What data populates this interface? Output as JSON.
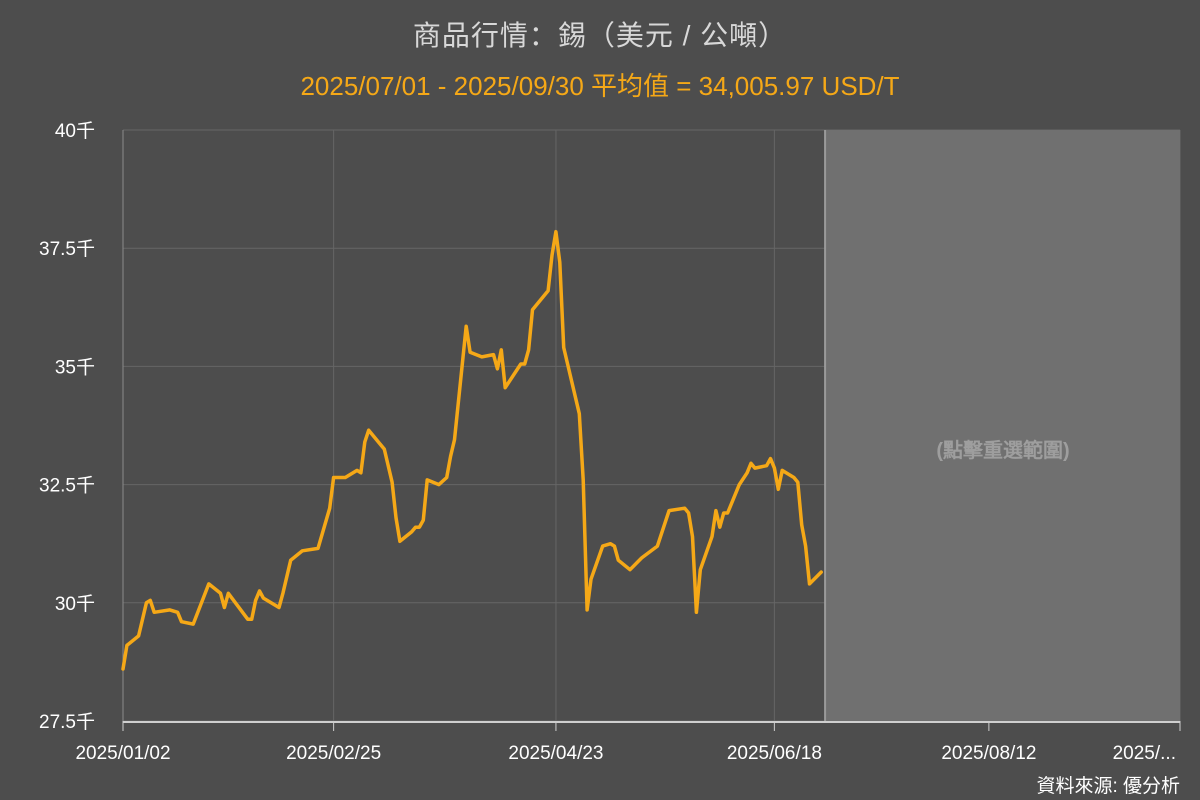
{
  "title": "商品行情：錫（美元 / 公噸）",
  "subtitle": "2025/07/01 - 2025/09/30 平均值 = 34,005.97 USD/T",
  "selection_hint": "(點擊重選範圍)",
  "source": "資料來源: 優分析",
  "colors": {
    "background": "#4d4d4d",
    "selection": "#707070",
    "line": "#f5a817",
    "grid": "#6a6a6a",
    "axis_text": "#ffffff"
  },
  "chart_data": {
    "type": "line",
    "title": "商品行情：錫（美元 / 公噸）",
    "subtitle": "2025/07/01 - 2025/09/30 平均值 = 34,005.97 USD/T",
    "ylim": [
      27500,
      40000
    ],
    "yticks": [
      27500,
      30000,
      32500,
      35000,
      37500,
      40000
    ],
    "ytick_labels": [
      "27.5千",
      "30千",
      "32.5千",
      "35千",
      "37.5千",
      "40千"
    ],
    "xlim": [
      "2025-01-02",
      "2025-09-30"
    ],
    "xtick_positions": [
      "2025-01-02",
      "2025-02-25",
      "2025-04-23",
      "2025-06-18",
      "2025-08-12",
      "2025-09-30"
    ],
    "xtick_labels": [
      "2025/01/02",
      "2025/02/25",
      "2025/04/23",
      "2025/06/18",
      "2025/08/12",
      "2025/..."
    ],
    "highlight_range": [
      "2025-07-01",
      "2025-09-30"
    ],
    "grid": true,
    "legend": "none",
    "series": [
      {
        "points": [
          [
            "2025-01-02",
            28600
          ],
          [
            "2025-01-03",
            29100
          ],
          [
            "2025-01-06",
            29300
          ],
          [
            "2025-01-08",
            30000
          ],
          [
            "2025-01-09",
            30050
          ],
          [
            "2025-01-10",
            29800
          ],
          [
            "2025-01-14",
            29850
          ],
          [
            "2025-01-16",
            29800
          ],
          [
            "2025-01-17",
            29600
          ],
          [
            "2025-01-20",
            29550
          ],
          [
            "2025-01-24",
            30400
          ],
          [
            "2025-01-27",
            30200
          ],
          [
            "2025-01-28",
            29900
          ],
          [
            "2025-01-29",
            30200
          ],
          [
            "2025-02-03",
            29650
          ],
          [
            "2025-02-04",
            29650
          ],
          [
            "2025-02-05",
            30050
          ],
          [
            "2025-02-06",
            30250
          ],
          [
            "2025-02-07",
            30100
          ],
          [
            "2025-02-11",
            29900
          ],
          [
            "2025-02-12",
            30200
          ],
          [
            "2025-02-14",
            30900
          ],
          [
            "2025-02-17",
            31100
          ],
          [
            "2025-02-21",
            31150
          ],
          [
            "2025-02-24",
            32000
          ],
          [
            "2025-02-25",
            32650
          ],
          [
            "2025-02-28",
            32650
          ],
          [
            "2025-03-03",
            32800
          ],
          [
            "2025-03-04",
            32750
          ],
          [
            "2025-03-05",
            33400
          ],
          [
            "2025-03-06",
            33650
          ],
          [
            "2025-03-10",
            33250
          ],
          [
            "2025-03-12",
            32550
          ],
          [
            "2025-03-13",
            31800
          ],
          [
            "2025-03-14",
            31300
          ],
          [
            "2025-03-17",
            31500
          ],
          [
            "2025-03-18",
            31600
          ],
          [
            "2025-03-19",
            31600
          ],
          [
            "2025-03-20",
            31750
          ],
          [
            "2025-03-21",
            32600
          ],
          [
            "2025-03-24",
            32500
          ],
          [
            "2025-03-26",
            32650
          ],
          [
            "2025-03-27",
            33100
          ],
          [
            "2025-03-28",
            33450
          ],
          [
            "2025-03-31",
            35850
          ],
          [
            "2025-04-01",
            35300
          ],
          [
            "2025-04-04",
            35200
          ],
          [
            "2025-04-07",
            35250
          ],
          [
            "2025-04-08",
            34950
          ],
          [
            "2025-04-09",
            35350
          ],
          [
            "2025-04-10",
            34550
          ],
          [
            "2025-04-14",
            35050
          ],
          [
            "2025-04-15",
            35050
          ],
          [
            "2025-04-16",
            35350
          ],
          [
            "2025-04-17",
            36200
          ],
          [
            "2025-04-21",
            36600
          ],
          [
            "2025-04-22",
            37350
          ],
          [
            "2025-04-23",
            37850
          ],
          [
            "2025-04-24",
            37200
          ],
          [
            "2025-04-25",
            35400
          ],
          [
            "2025-04-29",
            34000
          ],
          [
            "2025-04-30",
            32600
          ],
          [
            "2025-05-01",
            29850
          ],
          [
            "2025-05-02",
            30500
          ],
          [
            "2025-05-05",
            31200
          ],
          [
            "2025-05-07",
            31250
          ],
          [
            "2025-05-08",
            31200
          ],
          [
            "2025-05-09",
            30900
          ],
          [
            "2025-05-12",
            30700
          ],
          [
            "2025-05-15",
            30950
          ],
          [
            "2025-05-19",
            31200
          ],
          [
            "2025-05-20",
            31450
          ],
          [
            "2025-05-22",
            31950
          ],
          [
            "2025-05-26",
            32000
          ],
          [
            "2025-05-27",
            31900
          ],
          [
            "2025-05-28",
            31400
          ],
          [
            "2025-05-29",
            29800
          ],
          [
            "2025-05-30",
            30700
          ],
          [
            "2025-06-02",
            31400
          ],
          [
            "2025-06-03",
            31950
          ],
          [
            "2025-06-04",
            31600
          ],
          [
            "2025-06-05",
            31900
          ],
          [
            "2025-06-06",
            31900
          ],
          [
            "2025-06-09",
            32500
          ],
          [
            "2025-06-11",
            32750
          ],
          [
            "2025-06-12",
            32950
          ],
          [
            "2025-06-13",
            32850
          ],
          [
            "2025-06-16",
            32900
          ],
          [
            "2025-06-17",
            33050
          ],
          [
            "2025-06-18",
            32850
          ],
          [
            "2025-06-19",
            32400
          ],
          [
            "2025-06-20",
            32800
          ],
          [
            "2025-06-23",
            32650
          ],
          [
            "2025-06-24",
            32550
          ],
          [
            "2025-06-25",
            31650
          ],
          [
            "2025-06-26",
            31200
          ],
          [
            "2025-06-27",
            30400
          ],
          [
            "2025-06-30",
            30650
          ]
        ]
      }
    ]
  }
}
